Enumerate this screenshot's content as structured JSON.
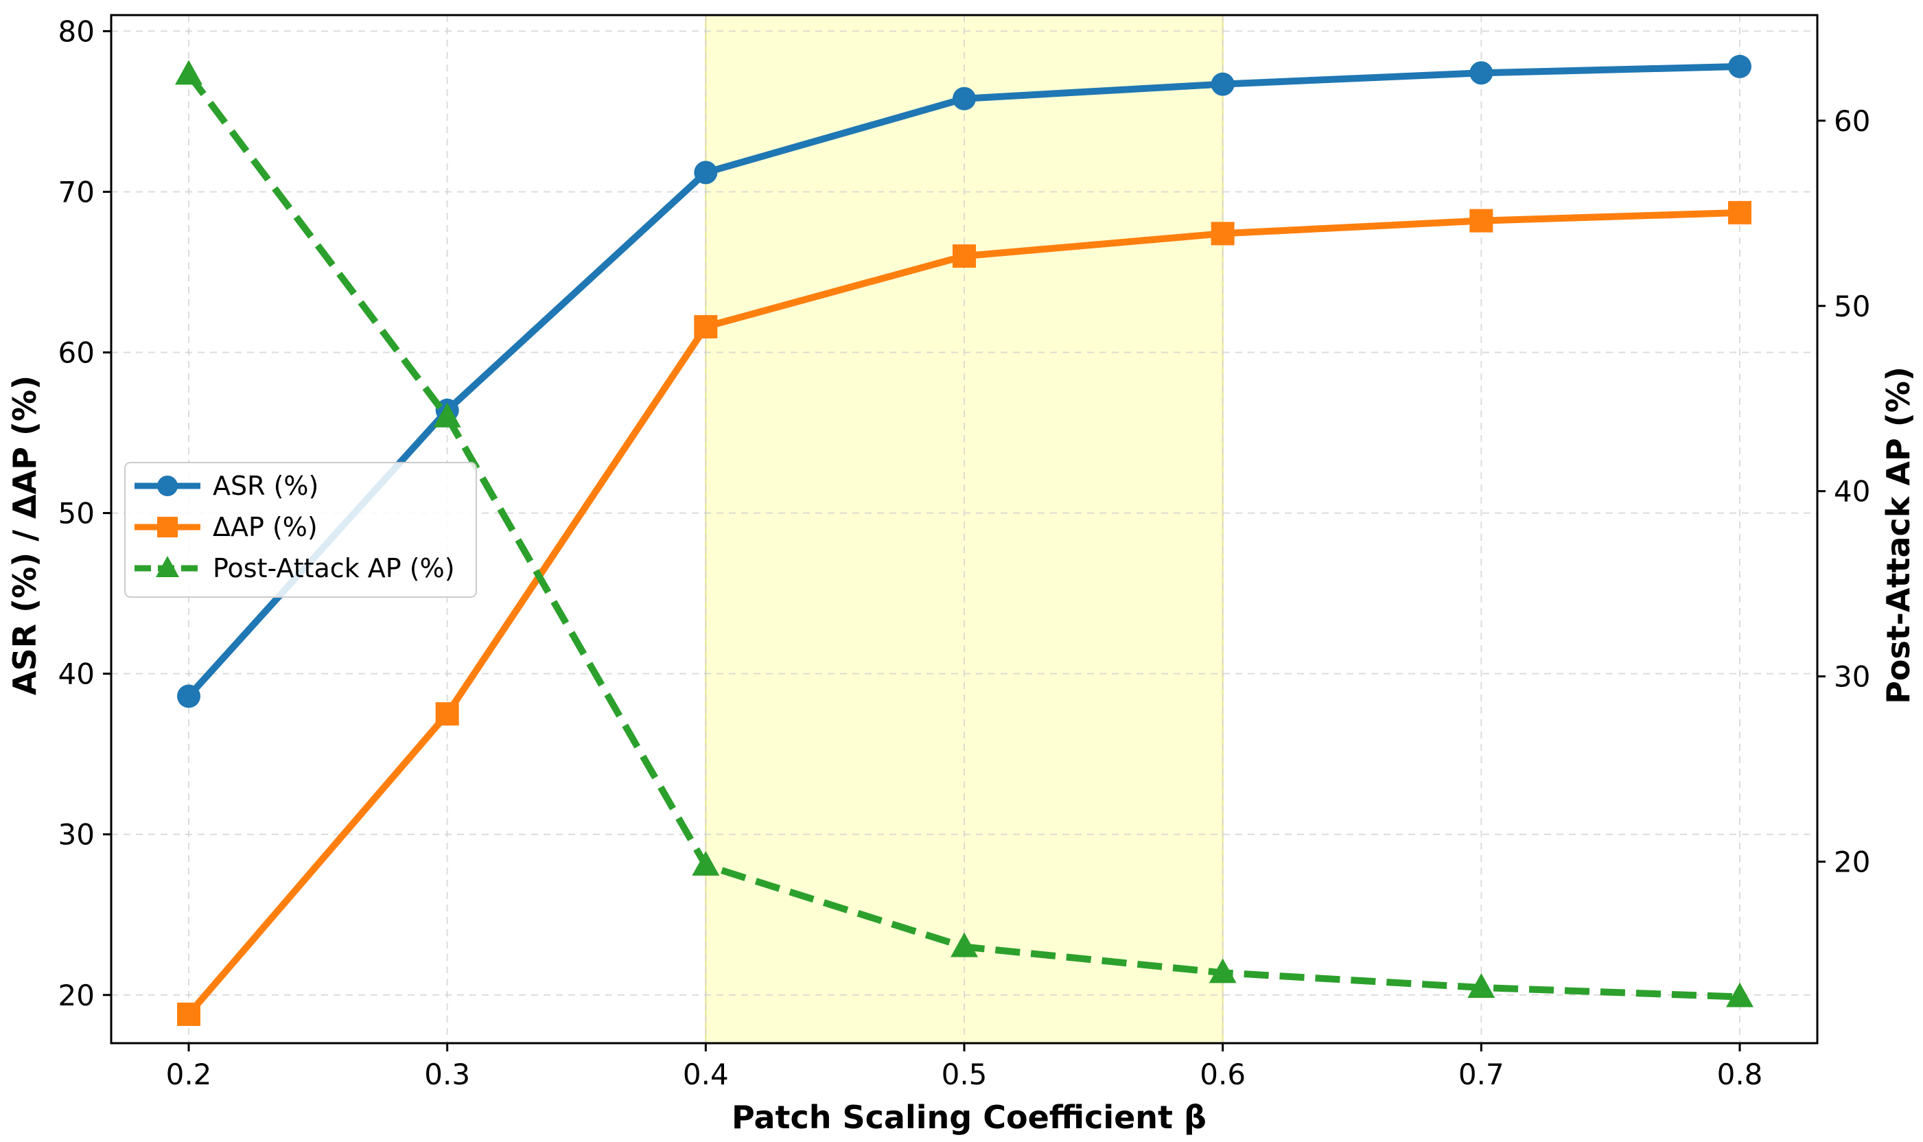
{
  "chart_data": {
    "type": "line",
    "title": "",
    "xlabel": "Patch Scaling Coefficient β",
    "ylabel_left": "ASR (%) / ΔAP (%)",
    "ylabel_right": "Post-Attack AP (%)",
    "x": [
      0.2,
      0.3,
      0.4,
      0.5,
      0.6,
      0.7,
      0.8
    ],
    "x_tick_labels": [
      "0.2",
      "0.3",
      "0.4",
      "0.5",
      "0.6",
      "0.7",
      "0.8"
    ],
    "xlim": [
      0.17,
      0.83
    ],
    "ylim_left": [
      17,
      81
    ],
    "ylim_right": [
      10.2,
      65.7
    ],
    "y_left_ticks": [
      20,
      30,
      40,
      50,
      60,
      70,
      80
    ],
    "y_left_tick_labels": [
      "20",
      "30",
      "40",
      "50",
      "60",
      "70",
      "80"
    ],
    "y_right_ticks": [
      20,
      30,
      40,
      50,
      60
    ],
    "y_right_tick_labels": [
      "20",
      "30",
      "40",
      "50",
      "60"
    ],
    "highlight_region": [
      0.4,
      0.6
    ],
    "grid": true,
    "legend_position": "center-left",
    "series": [
      {
        "name": "ASR (%)",
        "axis": "left",
        "marker": "circle",
        "linestyle": "solid",
        "color": "#1f77b4",
        "values": [
          38.6,
          56.4,
          71.2,
          75.8,
          76.7,
          77.4,
          77.8
        ]
      },
      {
        "name": "ΔAP (%)",
        "axis": "left",
        "marker": "square",
        "linestyle": "solid",
        "color": "#ff7f0e",
        "values": [
          18.8,
          37.5,
          61.6,
          66.0,
          67.4,
          68.2,
          68.7
        ]
      },
      {
        "name": "Post-Attack AP (%)",
        "axis": "right",
        "marker": "triangle",
        "linestyle": "dashed",
        "color": "#2ca02c",
        "values": [
          62.5,
          44.0,
          19.8,
          15.4,
          14.0,
          13.2,
          12.7
        ]
      }
    ]
  }
}
